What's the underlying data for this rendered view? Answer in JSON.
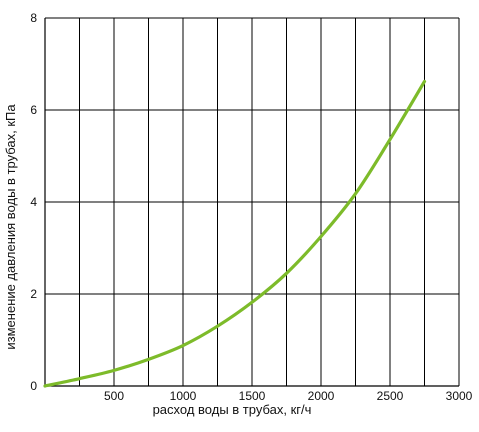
{
  "chart_data": {
    "type": "line",
    "xlabel": "расход воды в трубах, кг/ч",
    "ylabel": "изменение давления воды в трубах, кПа",
    "xlim": [
      0,
      3000
    ],
    "ylim": [
      0,
      8
    ],
    "x_ticks": [
      500,
      1000,
      1500,
      2000,
      2500,
      3000
    ],
    "x_tick_labels": [
      "500",
      "1000",
      "1500",
      "2000",
      "2500",
      "3000"
    ],
    "y_ticks": [
      0,
      2,
      4,
      6,
      8
    ],
    "y_tick_labels": [
      "0",
      "2",
      "4",
      "6",
      "8"
    ],
    "grid": true,
    "vertical_gridlines_x": [
      250,
      500,
      750,
      1000,
      1250,
      1500,
      1750,
      2000,
      2250,
      2500,
      2750,
      3000
    ],
    "line_color": "#7dbb2a",
    "series": [
      {
        "x": [
          0,
          250,
          500,
          750,
          1000,
          1250,
          1500,
          1750,
          2000,
          2250,
          2500,
          2750
        ],
        "y": [
          0.0,
          0.16,
          0.34,
          0.58,
          0.88,
          1.3,
          1.82,
          2.45,
          3.25,
          4.18,
          5.36,
          6.62
        ]
      }
    ]
  }
}
